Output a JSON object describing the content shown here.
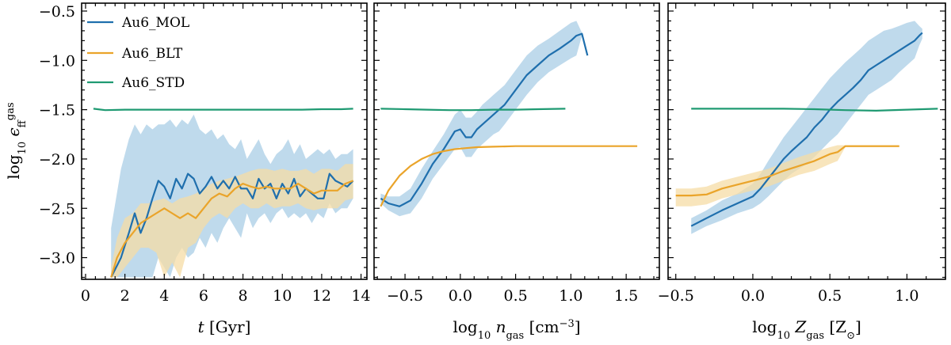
{
  "colors": {
    "MOL": "#1f6fad",
    "MOL_band": "#aacde6",
    "BLT": "#eaa42a",
    "BLT_band": "#f6dca5",
    "STD": "#1f9a72"
  },
  "chart_data": [
    {
      "type": "line",
      "xlabel": "t [Gyr]",
      "ylabel": "log10 ε_ff^gas",
      "xlim": [
        -0.2,
        14.3
      ],
      "ylim": [
        -3.22,
        -0.42
      ],
      "xticks": [
        0,
        2,
        4,
        6,
        8,
        10,
        12,
        14
      ],
      "xticks_labels": [
        "0",
        "2",
        "4",
        "6",
        "8",
        "10",
        "12",
        "14"
      ],
      "yticks": [
        -3.0,
        -2.5,
        -2.0,
        -1.5,
        -1.0,
        -0.5
      ],
      "yticks_labels": [
        "−3.0",
        "−2.5",
        "−2.0",
        "−1.5",
        "−1.0",
        "−0.5"
      ],
      "grid": false,
      "legend": "top-left",
      "series": [
        {
          "name": "Au6_MOL",
          "key": "MOL",
          "x": [
            1.3,
            1.8,
            2.2,
            2.5,
            2.8,
            3.1,
            3.4,
            3.7,
            4.0,
            4.3,
            4.6,
            4.9,
            5.2,
            5.5,
            5.8,
            6.1,
            6.4,
            6.7,
            7.0,
            7.3,
            7.6,
            7.9,
            8.2,
            8.5,
            8.8,
            9.1,
            9.4,
            9.7,
            10.0,
            10.3,
            10.6,
            10.9,
            11.2,
            11.5,
            11.8,
            12.1,
            12.4,
            12.7,
            13.0,
            13.3,
            13.6
          ],
          "y": [
            -3.2,
            -3.0,
            -2.75,
            -2.55,
            -2.75,
            -2.6,
            -2.4,
            -2.22,
            -2.28,
            -2.4,
            -2.2,
            -2.3,
            -2.15,
            -2.2,
            -2.35,
            -2.28,
            -2.18,
            -2.3,
            -2.22,
            -2.3,
            -2.18,
            -2.3,
            -2.3,
            -2.4,
            -2.2,
            -2.3,
            -2.25,
            -2.4,
            -2.25,
            -2.35,
            -2.2,
            -2.38,
            -2.3,
            -2.35,
            -2.4,
            -2.4,
            -2.15,
            -2.22,
            -2.25,
            -2.28,
            -2.22
          ],
          "band_upper": [
            -2.7,
            -2.1,
            -1.8,
            -1.65,
            -1.75,
            -1.65,
            -1.7,
            -1.65,
            -1.65,
            -1.6,
            -1.68,
            -1.6,
            -1.65,
            -1.55,
            -1.7,
            -1.75,
            -1.7,
            -1.8,
            -1.75,
            -1.85,
            -1.9,
            -1.8,
            -2.0,
            -1.9,
            -1.8,
            -1.95,
            -2.05,
            -1.95,
            -1.9,
            -1.8,
            -1.95,
            -1.85,
            -2.0,
            -1.95,
            -1.9,
            -1.95,
            -1.9,
            -2.0,
            -1.95,
            -1.95,
            -1.9
          ],
          "band_lower": [
            -3.2,
            -3.2,
            -3.2,
            -3.2,
            -3.2,
            -3.2,
            -3.2,
            -3.0,
            -3.1,
            -3.2,
            -3.0,
            -2.9,
            -3.0,
            -2.95,
            -2.8,
            -2.9,
            -2.75,
            -2.85,
            -2.7,
            -2.6,
            -2.7,
            -2.8,
            -2.55,
            -2.7,
            -2.6,
            -2.55,
            -2.65,
            -2.55,
            -2.5,
            -2.6,
            -2.55,
            -2.6,
            -2.55,
            -2.65,
            -2.55,
            -2.6,
            -2.45,
            -2.55,
            -2.5,
            -2.5,
            -2.4
          ]
        },
        {
          "name": "Au6_BLT",
          "key": "BLT",
          "x": [
            1.3,
            1.6,
            2.0,
            2.4,
            2.8,
            3.2,
            3.6,
            4.0,
            4.4,
            4.8,
            5.2,
            5.6,
            6.0,
            6.4,
            6.8,
            7.2,
            7.6,
            8.0,
            8.4,
            8.8,
            9.2,
            9.6,
            10.0,
            10.4,
            10.8,
            11.2,
            11.6,
            12.0,
            12.4,
            12.8,
            13.2,
            13.6
          ],
          "y": [
            -3.2,
            -3.0,
            -2.85,
            -2.75,
            -2.65,
            -2.6,
            -2.55,
            -2.5,
            -2.55,
            -2.6,
            -2.55,
            -2.6,
            -2.5,
            -2.4,
            -2.35,
            -2.38,
            -2.3,
            -2.25,
            -2.28,
            -2.3,
            -2.28,
            -2.3,
            -2.3,
            -2.3,
            -2.25,
            -2.3,
            -2.35,
            -2.32,
            -2.32,
            -2.32,
            -2.25,
            -2.22
          ],
          "band_upper": [
            -3.1,
            -2.8,
            -2.6,
            -2.55,
            -2.45,
            -2.45,
            -2.42,
            -2.4,
            -2.45,
            -2.4,
            -2.38,
            -2.35,
            -2.3,
            -2.25,
            -2.22,
            -2.2,
            -2.18,
            -2.15,
            -2.12,
            -2.1,
            -2.1,
            -2.12,
            -2.1,
            -2.12,
            -2.12,
            -2.1,
            -2.15,
            -2.1,
            -2.1,
            -2.12,
            -2.05,
            -2.05
          ],
          "band_lower": [
            -3.2,
            -3.2,
            -3.1,
            -3.0,
            -2.9,
            -2.9,
            -2.95,
            -3.2,
            -3.05,
            -3.2,
            -2.9,
            -2.85,
            -2.7,
            -2.6,
            -2.55,
            -2.6,
            -2.5,
            -2.45,
            -2.5,
            -2.5,
            -2.45,
            -2.5,
            -2.48,
            -2.48,
            -2.45,
            -2.5,
            -2.52,
            -2.5,
            -2.5,
            -2.5,
            -2.42,
            -2.4
          ]
        },
        {
          "name": "Au6_STD",
          "key": "STD",
          "x": [
            0.4,
            1.0,
            2.0,
            3.0,
            4.0,
            5.0,
            6.0,
            7.0,
            8.0,
            9.0,
            10.0,
            11.0,
            12.0,
            13.0,
            13.6
          ],
          "y": [
            -1.49,
            -1.505,
            -1.5,
            -1.5,
            -1.5,
            -1.5,
            -1.5,
            -1.5,
            -1.5,
            -1.5,
            -1.5,
            -1.5,
            -1.495,
            -1.495,
            -1.49
          ]
        }
      ]
    },
    {
      "type": "line",
      "xlabel": "log10 n_gas [cm^-3]",
      "xlim": [
        -0.78,
        1.8
      ],
      "ylim": [
        -3.22,
        -0.42
      ],
      "xticks": [
        -0.5,
        0.0,
        0.5,
        1.0,
        1.5
      ],
      "xticks_labels": [
        "−0.5",
        "0.0",
        "0.5",
        "1.0",
        "1.5"
      ],
      "yticks": [
        -3.0,
        -2.5,
        -2.0,
        -1.5,
        -1.0,
        -0.5
      ],
      "grid": false,
      "series": [
        {
          "name": "Au6_MOL",
          "key": "MOL",
          "x": [
            -0.72,
            -0.65,
            -0.55,
            -0.45,
            -0.35,
            -0.25,
            -0.15,
            -0.05,
            0.0,
            0.05,
            0.1,
            0.15,
            0.2,
            0.25,
            0.3,
            0.35,
            0.4,
            0.5,
            0.6,
            0.7,
            0.8,
            0.9,
            1.0,
            1.05,
            1.1,
            1.15
          ],
          "y": [
            -2.4,
            -2.45,
            -2.48,
            -2.42,
            -2.25,
            -2.05,
            -1.9,
            -1.72,
            -1.7,
            -1.78,
            -1.78,
            -1.7,
            -1.65,
            -1.6,
            -1.55,
            -1.5,
            -1.45,
            -1.3,
            -1.15,
            -1.05,
            -0.95,
            -0.88,
            -0.8,
            -0.75,
            -0.73,
            -0.95
          ],
          "band_upper": [
            -2.35,
            -2.38,
            -2.38,
            -2.3,
            -2.1,
            -1.92,
            -1.75,
            -1.55,
            -1.5,
            -1.58,
            -1.58,
            -1.52,
            -1.45,
            -1.4,
            -1.35,
            -1.3,
            -1.25,
            -1.1,
            -0.95,
            -0.85,
            -0.78,
            -0.7,
            -0.62,
            -0.6,
            -0.72,
            -0.95
          ],
          "band_lower": [
            -2.45,
            -2.52,
            -2.58,
            -2.55,
            -2.4,
            -2.2,
            -2.05,
            -1.9,
            -1.88,
            -1.98,
            -1.98,
            -1.9,
            -1.85,
            -1.8,
            -1.75,
            -1.72,
            -1.65,
            -1.5,
            -1.35,
            -1.22,
            -1.12,
            -1.05,
            -0.98,
            -0.95,
            -0.75,
            -0.95
          ]
        },
        {
          "name": "Au6_BLT",
          "key": "BLT",
          "x": [
            -0.72,
            -0.65,
            -0.55,
            -0.45,
            -0.35,
            -0.25,
            -0.15,
            -0.05,
            0.05,
            0.15,
            0.3,
            0.5,
            0.7,
            0.9,
            1.1,
            1.3,
            1.6
          ],
          "y": [
            -2.48,
            -2.32,
            -2.17,
            -2.07,
            -2.0,
            -1.95,
            -1.92,
            -1.9,
            -1.89,
            -1.88,
            -1.875,
            -1.87,
            -1.87,
            -1.87,
            -1.87,
            -1.87,
            -1.87
          ]
        },
        {
          "name": "Au6_STD",
          "key": "STD",
          "x": [
            -0.72,
            -0.5,
            -0.3,
            -0.1,
            0.1,
            0.3,
            0.5,
            0.7,
            0.95
          ],
          "y": [
            -1.49,
            -1.495,
            -1.5,
            -1.505,
            -1.505,
            -1.5,
            -1.5,
            -1.495,
            -1.49
          ]
        }
      ]
    },
    {
      "type": "line",
      "xlabel": "log10 Z_gas [Z_sun]",
      "xlim": [
        -0.55,
        1.25
      ],
      "ylim": [
        -3.22,
        -0.42
      ],
      "xticks": [
        -0.5,
        0.0,
        0.5,
        1.0
      ],
      "xticks_labels": [
        "−0.5",
        "0.0",
        "0.5",
        "1.0"
      ],
      "yticks": [
        -3.0,
        -2.5,
        -2.0,
        -1.5,
        -1.0,
        -0.5
      ],
      "grid": false,
      "series": [
        {
          "name": "Au6_MOL",
          "key": "MOL",
          "x": [
            -0.4,
            -0.3,
            -0.2,
            -0.1,
            0.0,
            0.05,
            0.1,
            0.15,
            0.2,
            0.25,
            0.3,
            0.35,
            0.4,
            0.45,
            0.5,
            0.55,
            0.6,
            0.65,
            0.7,
            0.75,
            0.8,
            0.85,
            0.9,
            0.95,
            1.0,
            1.05,
            1.08,
            1.1
          ],
          "y": [
            -2.68,
            -2.6,
            -2.52,
            -2.45,
            -2.38,
            -2.3,
            -2.2,
            -2.1,
            -2.0,
            -1.92,
            -1.85,
            -1.78,
            -1.68,
            -1.6,
            -1.5,
            -1.42,
            -1.35,
            -1.28,
            -1.2,
            -1.1,
            -1.05,
            -1.0,
            -0.95,
            -0.9,
            -0.85,
            -0.8,
            -0.75,
            -0.72
          ],
          "band_upper": [
            -2.6,
            -2.52,
            -2.42,
            -2.35,
            -2.25,
            -2.15,
            -2.02,
            -1.9,
            -1.78,
            -1.68,
            -1.58,
            -1.48,
            -1.38,
            -1.28,
            -1.18,
            -1.1,
            -1.02,
            -0.95,
            -0.88,
            -0.8,
            -0.75,
            -0.7,
            -0.68,
            -0.65,
            -0.62,
            -0.6,
            -0.65,
            -0.68
          ],
          "band_lower": [
            -2.76,
            -2.68,
            -2.62,
            -2.55,
            -2.5,
            -2.45,
            -2.38,
            -2.3,
            -2.22,
            -2.15,
            -2.1,
            -2.05,
            -1.98,
            -1.9,
            -1.82,
            -1.75,
            -1.65,
            -1.55,
            -1.45,
            -1.35,
            -1.3,
            -1.25,
            -1.2,
            -1.12,
            -1.05,
            -0.98,
            -0.85,
            -0.78
          ]
        },
        {
          "name": "Au6_BLT",
          "key": "BLT",
          "x": [
            -0.5,
            -0.4,
            -0.3,
            -0.2,
            -0.1,
            0.0,
            0.1,
            0.2,
            0.3,
            0.4,
            0.5,
            0.55,
            0.6,
            0.7,
            0.8,
            0.95
          ],
          "y": [
            -2.37,
            -2.37,
            -2.36,
            -2.3,
            -2.26,
            -2.22,
            -2.18,
            -2.12,
            -2.07,
            -2.02,
            -1.95,
            -1.93,
            -1.87,
            -1.87,
            -1.87,
            -1.87
          ],
          "band_upper": [
            -2.3,
            -2.3,
            -2.28,
            -2.22,
            -2.18,
            -2.14,
            -2.1,
            -2.04,
            -1.98,
            -1.93,
            -1.88,
            -1.86,
            -1.86,
            -1.86,
            -1.86,
            -1.86
          ],
          "band_lower": [
            -2.48,
            -2.48,
            -2.46,
            -2.4,
            -2.36,
            -2.32,
            -2.28,
            -2.22,
            -2.16,
            -2.12,
            -2.05,
            -2.02,
            -1.88,
            -1.88,
            -1.88,
            -1.88
          ]
        },
        {
          "name": "Au6_STD",
          "key": "STD",
          "x": [
            -0.4,
            -0.2,
            0.0,
            0.2,
            0.4,
            0.6,
            0.8,
            1.0,
            1.2
          ],
          "y": [
            -1.49,
            -1.49,
            -1.49,
            -1.49,
            -1.495,
            -1.505,
            -1.51,
            -1.5,
            -1.49
          ]
        }
      ]
    }
  ]
}
